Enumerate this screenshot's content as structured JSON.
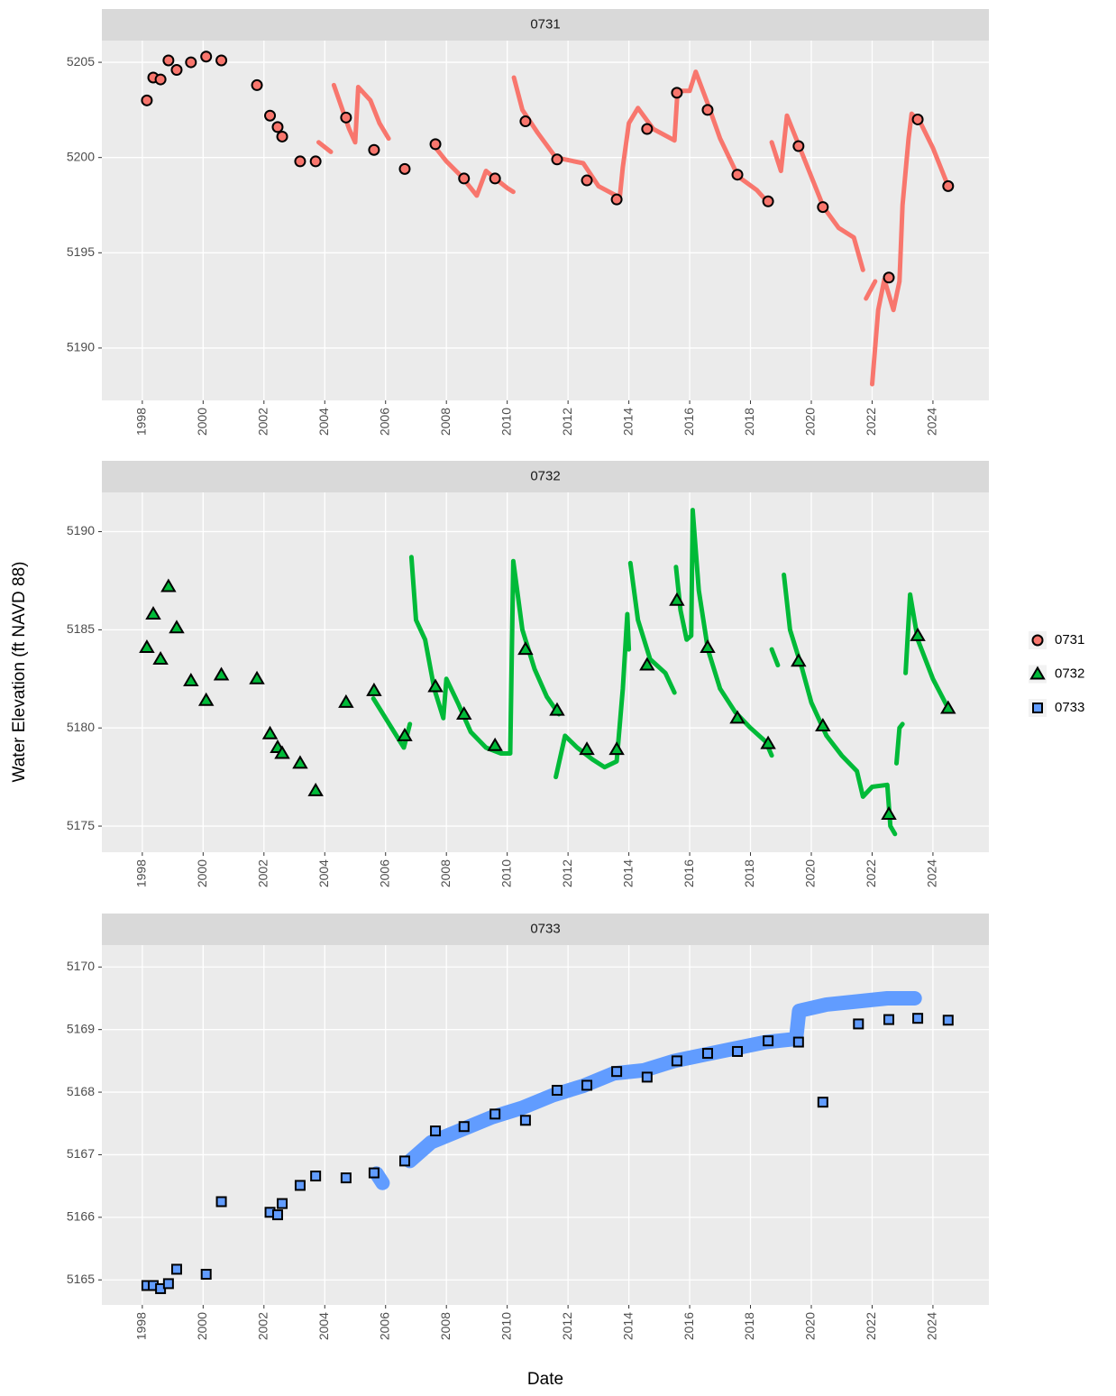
{
  "y_label": "Water Elevation (ft NAVD 88)",
  "x_label": "Date",
  "legend_position": "right",
  "chart_data": [
    {
      "type": "scatter",
      "title": "0731",
      "xlim": [
        1996.67,
        2025.84
      ],
      "xticks": [
        1998,
        2000,
        2002,
        2004,
        2006,
        2008,
        2010,
        2012,
        2014,
        2016,
        2018,
        2020,
        2022,
        2024
      ],
      "ylim": [
        5187.25,
        5206.14
      ],
      "yticks": [
        5190,
        5195,
        5200,
        5205
      ],
      "grid": true,
      "series": [
        {
          "name": "0731",
          "color": "#f8766d",
          "marker": "circle",
          "x": [
            1998.15,
            1998.36,
            1998.6,
            1998.86,
            1999.13,
            1999.6,
            2000.1,
            2000.6,
            2001.77,
            2002.2,
            2002.45,
            2002.6,
            2003.19,
            2003.7,
            2004.7,
            2005.62,
            2006.63,
            2007.64,
            2008.58,
            2009.6,
            2010.6,
            2011.64,
            2012.62,
            2013.6,
            2014.6,
            2015.58,
            2016.59,
            2017.57,
            2018.58,
            2019.58,
            2020.38,
            2022.55,
            2023.5,
            2024.5
          ],
          "values": [
            5203.0,
            5204.2,
            5204.1,
            5205.1,
            5204.6,
            5205.0,
            5205.3,
            5205.1,
            5203.8,
            5202.2,
            5201.6,
            5201.1,
            5199.8,
            5199.8,
            5202.1,
            5200.4,
            5199.4,
            5200.7,
            5198.9,
            5198.9,
            5201.9,
            5199.9,
            5198.8,
            5197.8,
            5201.5,
            5203.4,
            5202.5,
            5199.1,
            5197.7,
            5200.6,
            5197.4,
            5193.7,
            5202.0,
            5198.5
          ]
        }
      ],
      "continuous": {
        "x": [
          2003.8,
          2004.2,
          null,
          2004.3,
          2004.8,
          2005.0,
          2005.1,
          2005.5,
          2005.8,
          2006.1,
          null,
          2007.6,
          2008.0,
          2008.5,
          2009.0,
          2009.3,
          2009.6,
          2010.0,
          2010.2,
          null,
          2010.22,
          2010.5,
          2011.0,
          2011.6,
          2012.5,
          2013.0,
          2013.7,
          2013.8,
          2014.0,
          2014.3,
          2014.8,
          2015.5,
          2015.6,
          2016.0,
          2016.2,
          2016.6,
          2017.0,
          2017.6,
          2018.2,
          2018.6,
          null,
          2018.7,
          2019.0,
          2019.2,
          2019.6,
          2020.0,
          2020.4,
          2020.9,
          2021.4,
          2021.7,
          null,
          2021.8,
          2022.1,
          null,
          2022.0,
          2022.2,
          2022.4,
          2022.7,
          2022.9,
          2023.0,
          2023.2,
          2023.3,
          2023.6,
          2024.0,
          2024.5
        ],
        "values": [
          5200.8,
          5200.3,
          null,
          5203.8,
          5201.5,
          5200.8,
          5203.7,
          5203.0,
          5201.8,
          5201.0,
          null,
          5200.6,
          5199.8,
          5199.0,
          5198.0,
          5199.3,
          5198.9,
          5198.4,
          5198.2,
          null,
          5204.2,
          5202.5,
          5201.3,
          5200.0,
          5199.7,
          5198.5,
          5197.9,
          5199.5,
          5201.8,
          5202.6,
          5201.5,
          5200.9,
          5203.5,
          5203.5,
          5204.5,
          5202.8,
          5201.0,
          5199.0,
          5198.3,
          5197.6,
          null,
          5200.8,
          5199.3,
          5202.2,
          5200.6,
          5199.0,
          5197.4,
          5196.3,
          5195.8,
          5194.1,
          null,
          5192.6,
          5193.5,
          null,
          5188.1,
          5192.0,
          5193.6,
          5192.0,
          5193.5,
          5197.5,
          5201.0,
          5202.3,
          5201.8,
          5200.5,
          5198.5
        ]
      }
    },
    {
      "type": "scatter",
      "title": "0732",
      "xlim": [
        1996.67,
        2025.84
      ],
      "xticks": [
        1998,
        2000,
        2002,
        2004,
        2006,
        2008,
        2010,
        2012,
        2014,
        2016,
        2018,
        2020,
        2022,
        2024
      ],
      "ylim": [
        5173.67,
        5192.0
      ],
      "yticks": [
        5175,
        5180,
        5185,
        5190
      ],
      "grid": true,
      "series": [
        {
          "name": "0732",
          "color": "#00ba38",
          "marker": "triangle",
          "x": [
            1998.15,
            1998.36,
            1998.6,
            1998.86,
            1999.13,
            1999.6,
            2000.1,
            2000.6,
            2001.77,
            2002.2,
            2002.45,
            2002.6,
            2003.19,
            2003.7,
            2004.7,
            2005.62,
            2006.63,
            2007.64,
            2008.58,
            2009.6,
            2010.6,
            2011.64,
            2012.62,
            2013.6,
            2014.6,
            2015.58,
            2016.59,
            2017.57,
            2018.58,
            2019.58,
            2020.38,
            2022.55,
            2023.5,
            2024.5
          ],
          "values": [
            5184.1,
            5185.8,
            5183.5,
            5187.2,
            5185.1,
            5182.4,
            5181.4,
            5182.7,
            5182.5,
            5179.7,
            5179.0,
            5178.7,
            5178.2,
            5176.8,
            5181.3,
            5181.9,
            5179.6,
            5182.1,
            5180.7,
            5179.1,
            5184.0,
            5180.9,
            5178.9,
            5178.9,
            5183.2,
            5186.5,
            5184.1,
            5180.5,
            5179.2,
            5183.4,
            5180.1,
            5175.6,
            5184.7,
            5181.0
          ]
        }
      ],
      "continuous": {
        "x": [
          2005.6,
          2006.0,
          2006.6,
          2006.8,
          null,
          2006.85,
          2007.0,
          2007.3,
          2007.6,
          2007.9,
          2008.0,
          2008.4,
          2008.8,
          2009.3,
          2009.8,
          2010.1,
          2010.2,
          2010.5,
          2010.9,
          2011.3,
          2011.7,
          null,
          2011.6,
          2011.9,
          2012.3,
          2012.8,
          2013.2,
          2013.6,
          2013.8,
          2013.95,
          2014.0,
          null,
          2014.05,
          2014.3,
          2014.7,
          2015.2,
          2015.5,
          null,
          2015.55,
          2015.7,
          2015.9,
          2016.05,
          2016.1,
          2016.3,
          2016.6,
          2017.0,
          2017.5,
          2018.0,
          2018.5,
          2018.7,
          null,
          2018.7,
          2018.9,
          null,
          2019.1,
          2019.3,
          2019.7,
          2020.0,
          2020.5,
          2021.0,
          2021.5,
          2021.7,
          2022.0,
          2022.5,
          2022.6,
          2022.75,
          null,
          2022.8,
          2022.9,
          2023.0,
          null,
          2023.1,
          2023.25,
          2023.5,
          2024.0,
          2024.5
        ],
        "values": [
          5181.5,
          5180.5,
          5179.0,
          5180.2,
          null,
          5188.7,
          5185.5,
          5184.5,
          5182.0,
          5180.5,
          5182.5,
          5181.2,
          5179.8,
          5179.0,
          5178.7,
          5178.7,
          5188.5,
          5185.0,
          5183.0,
          5181.6,
          5180.7,
          null,
          5177.5,
          5179.6,
          5179.0,
          5178.4,
          5178.0,
          5178.3,
          5182.0,
          5185.8,
          5184.0,
          null,
          5188.4,
          5185.5,
          5183.5,
          5182.8,
          5181.8,
          null,
          5188.2,
          5186.0,
          5184.5,
          5184.7,
          5191.1,
          5187.0,
          5184.0,
          5182.0,
          5180.8,
          5180.0,
          5179.3,
          5178.6,
          null,
          5184.0,
          5183.2,
          null,
          5187.8,
          5185.0,
          5183.0,
          5181.3,
          5179.6,
          5178.6,
          5177.8,
          5176.5,
          5177.0,
          5177.1,
          5175.0,
          5174.6,
          null,
          5178.2,
          5180.0,
          5180.2,
          null,
          5182.8,
          5186.8,
          5184.5,
          5182.5,
          5181.0
        ]
      }
    },
    {
      "type": "scatter",
      "title": "0733",
      "xlim": [
        1996.67,
        2025.84
      ],
      "xticks": [
        1998,
        2000,
        2002,
        2004,
        2006,
        2008,
        2010,
        2012,
        2014,
        2016,
        2018,
        2020,
        2022,
        2024
      ],
      "ylim": [
        5164.6,
        5170.35
      ],
      "yticks": [
        5165,
        5166,
        5167,
        5168,
        5169,
        5170
      ],
      "grid": true,
      "series": [
        {
          "name": "0733",
          "color": "#619cff",
          "marker": "square",
          "x": [
            1998.15,
            1998.36,
            1998.6,
            1998.86,
            1999.13,
            2000.1,
            2000.6,
            2002.2,
            2002.45,
            2002.6,
            2003.19,
            2003.7,
            2004.7,
            2005.62,
            2006.63,
            2007.64,
            2008.58,
            2009.6,
            2010.6,
            2011.64,
            2012.62,
            2013.6,
            2014.6,
            2015.58,
            2016.59,
            2017.57,
            2018.58,
            2019.58,
            2020.38,
            2021.55,
            2022.55,
            2023.5,
            2024.5
          ],
          "values": [
            5164.91,
            5164.91,
            5164.86,
            5164.94,
            5165.17,
            5165.09,
            5166.25,
            5166.08,
            5166.04,
            5166.22,
            5166.51,
            5166.66,
            5166.63,
            5166.71,
            5166.9,
            5167.38,
            5167.45,
            5167.65,
            5167.55,
            5168.03,
            5168.11,
            5168.33,
            5168.24,
            5168.5,
            5168.62,
            5168.65,
            5168.82,
            5168.8,
            5167.84,
            5169.09,
            5169.16,
            5169.18,
            5169.15
          ]
        }
      ],
      "continuous": {
        "x": [
          2005.7,
          2005.9,
          null,
          2006.8,
          2007.5,
          2008.5,
          2009.5,
          2010.5,
          2011.5,
          2012.5,
          2013.5,
          2014.5,
          2015.5,
          2016.5,
          2017.5,
          2018.5,
          2019.5,
          2019.6,
          2020.5,
          2021.5,
          2022.5,
          2023.4
        ],
        "values": [
          5166.7,
          5166.55,
          null,
          5166.9,
          5167.2,
          5167.4,
          5167.6,
          5167.75,
          5167.95,
          5168.1,
          5168.3,
          5168.35,
          5168.5,
          5168.6,
          5168.7,
          5168.8,
          5168.85,
          5169.3,
          5169.4,
          5169.45,
          5169.5,
          5169.5
        ]
      }
    }
  ]
}
